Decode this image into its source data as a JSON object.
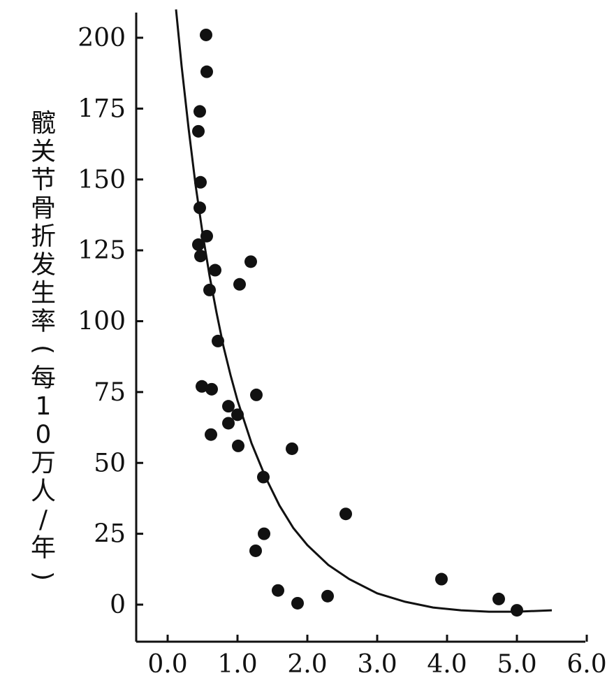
{
  "chart_data": {
    "type": "scatter",
    "xlabel": "",
    "ylabel": "髋关节骨折发生率（每10万人/年）",
    "xlim": [
      -0.4,
      6.0
    ],
    "ylim": [
      -14,
      210
    ],
    "x_ticks": [
      "0.0",
      "1.0",
      "2.0",
      "3.0",
      "4.0",
      "5.0",
      "6.0"
    ],
    "x_tick_values": [
      0,
      1,
      2,
      3,
      4,
      5,
      6
    ],
    "y_ticks": [
      "0",
      "25",
      "50",
      "75",
      "100",
      "125",
      "150",
      "175",
      "200"
    ],
    "y_tick_values": [
      0,
      25,
      50,
      75,
      100,
      125,
      150,
      175,
      200
    ],
    "points": [
      {
        "x": 0.55,
        "y": 201
      },
      {
        "x": 0.56,
        "y": 188
      },
      {
        "x": 0.46,
        "y": 174
      },
      {
        "x": 0.44,
        "y": 167
      },
      {
        "x": 0.47,
        "y": 149
      },
      {
        "x": 0.46,
        "y": 140
      },
      {
        "x": 0.56,
        "y": 130
      },
      {
        "x": 0.44,
        "y": 127
      },
      {
        "x": 0.47,
        "y": 123
      },
      {
        "x": 1.19,
        "y": 121
      },
      {
        "x": 0.68,
        "y": 118
      },
      {
        "x": 1.03,
        "y": 113
      },
      {
        "x": 0.6,
        "y": 111
      },
      {
        "x": 0.72,
        "y": 93
      },
      {
        "x": 0.49,
        "y": 77
      },
      {
        "x": 0.63,
        "y": 76
      },
      {
        "x": 1.27,
        "y": 74
      },
      {
        "x": 0.87,
        "y": 70
      },
      {
        "x": 1.0,
        "y": 67
      },
      {
        "x": 0.87,
        "y": 64
      },
      {
        "x": 0.62,
        "y": 60
      },
      {
        "x": 1.01,
        "y": 56
      },
      {
        "x": 1.78,
        "y": 55
      },
      {
        "x": 1.37,
        "y": 45
      },
      {
        "x": 2.55,
        "y": 32
      },
      {
        "x": 1.38,
        "y": 25
      },
      {
        "x": 1.26,
        "y": 19
      },
      {
        "x": 1.58,
        "y": 5
      },
      {
        "x": 1.86,
        "y": 0.5
      },
      {
        "x": 2.29,
        "y": 3
      },
      {
        "x": 3.92,
        "y": 9
      },
      {
        "x": 4.74,
        "y": 2
      },
      {
        "x": 5.0,
        "y": -2
      }
    ],
    "fit_curve": [
      {
        "x": 0.12,
        "y": 210
      },
      {
        "x": 0.2,
        "y": 190
      },
      {
        "x": 0.3,
        "y": 168
      },
      {
        "x": 0.4,
        "y": 148
      },
      {
        "x": 0.5,
        "y": 131
      },
      {
        "x": 0.6,
        "y": 116
      },
      {
        "x": 0.7,
        "y": 103
      },
      {
        "x": 0.8,
        "y": 91
      },
      {
        "x": 0.9,
        "y": 81
      },
      {
        "x": 1.0,
        "y": 72
      },
      {
        "x": 1.2,
        "y": 57
      },
      {
        "x": 1.4,
        "y": 45
      },
      {
        "x": 1.6,
        "y": 35
      },
      {
        "x": 1.8,
        "y": 27
      },
      {
        "x": 2.0,
        "y": 21
      },
      {
        "x": 2.3,
        "y": 14
      },
      {
        "x": 2.6,
        "y": 9
      },
      {
        "x": 3.0,
        "y": 4
      },
      {
        "x": 3.4,
        "y": 1
      },
      {
        "x": 3.8,
        "y": -1
      },
      {
        "x": 4.2,
        "y": -2
      },
      {
        "x": 4.6,
        "y": -2.5
      },
      {
        "x": 5.0,
        "y": -2.5
      },
      {
        "x": 5.5,
        "y": -2
      }
    ]
  }
}
